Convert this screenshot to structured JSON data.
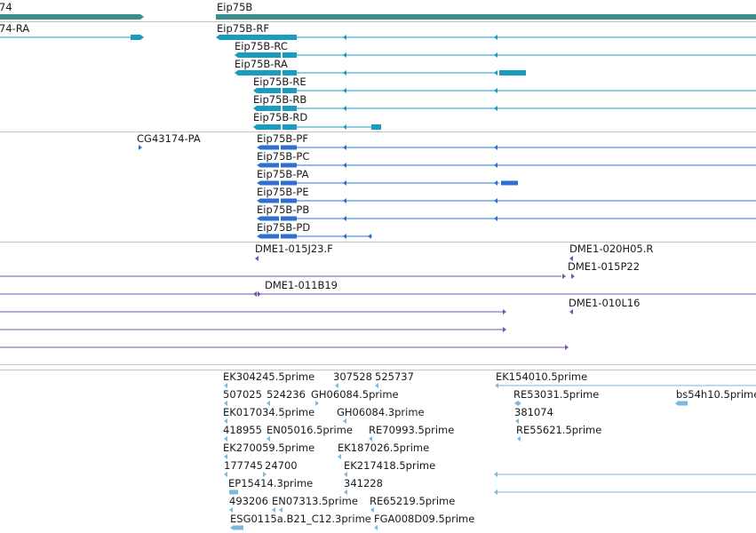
{
  "tracks": {
    "gene": {
      "features": [
        {
          "name": "74",
          "clipped": true
        },
        {
          "name": "Eip75B"
        }
      ]
    },
    "transcripts_rna": {
      "features": [
        {
          "name": "74-RA",
          "clipped": true
        },
        {
          "name": "Eip75B-RF"
        },
        {
          "name": "Eip75B-RC"
        },
        {
          "name": "Eip75B-RA"
        },
        {
          "name": "Eip75B-RE"
        },
        {
          "name": "Eip75B-RB"
        },
        {
          "name": "Eip75B-RD"
        }
      ]
    },
    "transcripts_protein": {
      "features": [
        {
          "name": "CG43174-PA"
        },
        {
          "name": "Eip75B-PF"
        },
        {
          "name": "Eip75B-PC"
        },
        {
          "name": "Eip75B-PA"
        },
        {
          "name": "Eip75B-PE"
        },
        {
          "name": "Eip75B-PB"
        },
        {
          "name": "Eip75B-PD"
        }
      ]
    },
    "clones": {
      "features": [
        {
          "name": "DME1-015J23.F"
        },
        {
          "name": "DME1-020H05.R"
        },
        {
          "name": "DME1-015P22"
        },
        {
          "name": "DME1-011B19"
        },
        {
          "name": "DME1-010L16"
        }
      ]
    },
    "ests": {
      "features": [
        {
          "name": "EK304245.5prime"
        },
        {
          "name": "307528"
        },
        {
          "name": "525737"
        },
        {
          "name": "EK154010.5prime"
        },
        {
          "name": "507025"
        },
        {
          "name": "524236"
        },
        {
          "name": "GH06084.5prime"
        },
        {
          "name": "RE53031.5prime"
        },
        {
          "name": "bs54h10.5prime",
          "clipped": true
        },
        {
          "name": "EK017034.5prime"
        },
        {
          "name": "GH06084.3prime"
        },
        {
          "name": "381074"
        },
        {
          "name": "418955"
        },
        {
          "name": "EN05016.5prime"
        },
        {
          "name": "RE70993.5prime"
        },
        {
          "name": "RE55621.5prime"
        },
        {
          "name": "EK270059.5prime"
        },
        {
          "name": "EK187026.5prime"
        },
        {
          "name": "177745"
        },
        {
          "name": "24700"
        },
        {
          "name": "EK217418.5prime"
        },
        {
          "name": "EP15414.3prime"
        },
        {
          "name": "341228"
        },
        {
          "name": "493206"
        },
        {
          "name": "EN07313.5prime"
        },
        {
          "name": "RE65219.5prime"
        },
        {
          "name": "ESG0115a.B21_C12.3prime"
        },
        {
          "name": "FGA008D09.5prime"
        }
      ]
    }
  },
  "colors": {
    "gene": "#3d8f8f",
    "rna": "#1a9cc0",
    "protein": "#2f6fcf",
    "clone": "#7a52b0",
    "est": "#7fb6dc",
    "separator": "#c4c4c4"
  }
}
